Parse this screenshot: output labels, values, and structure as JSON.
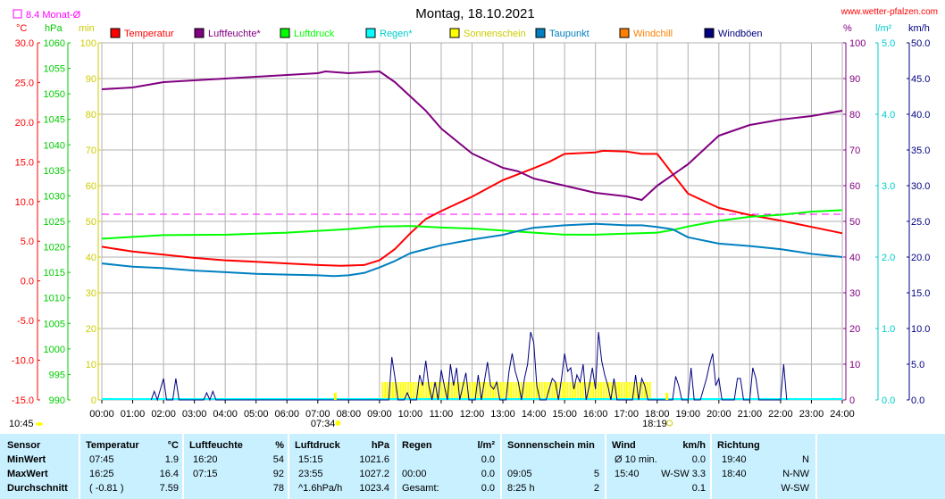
{
  "chart_data": {
    "type": "line",
    "title": "Montag, 18.10.2021",
    "website": "www.wetter-pfalzen.com",
    "monthly_avg_label": "8.4 Monat-Ø",
    "monthly_avg_value": 8.4,
    "axes": {
      "temp": {
        "unit": "°C",
        "min": -15,
        "max": 30,
        "ticks": [
          "30.0",
          "25.0",
          "20.0",
          "15.0",
          "10.0",
          "5.0",
          "0.0",
          "-5.0",
          "-10.0",
          "-15.0"
        ],
        "color": "#ff0000"
      },
      "pressure": {
        "unit": "hPa",
        "min": 990,
        "max": 1060,
        "ticks": [
          "1060",
          "1055",
          "1050",
          "1045",
          "1040",
          "1035",
          "1030",
          "1025",
          "1020",
          "1015",
          "1010",
          "1005",
          "1000",
          "995",
          "990"
        ],
        "color": "#00cc00"
      },
      "sun_min": {
        "unit": "min",
        "min": 0,
        "max": 100,
        "ticks": [
          "100",
          "90",
          "80",
          "70",
          "60",
          "50",
          "40",
          "30",
          "20",
          "10",
          "0"
        ],
        "color": "#cccc00"
      },
      "humidity": {
        "unit": "%",
        "min": 0,
        "max": 100,
        "ticks": [
          "100",
          "90",
          "80",
          "70",
          "60",
          "50",
          "40",
          "30",
          "20",
          "10",
          "0"
        ],
        "color": "#800080"
      },
      "rain": {
        "unit": "l/m²",
        "min": 0,
        "max": 5,
        "ticks": [
          "5.0",
          "4.0",
          "3.0",
          "2.0",
          "1.0",
          "0.0"
        ],
        "color": "#00cccc"
      },
      "wind": {
        "unit": "km/h",
        "min": 0,
        "max": 50,
        "ticks": [
          "50.0",
          "45.0",
          "40.0",
          "35.0",
          "30.0",
          "25.0",
          "20.0",
          "15.0",
          "10.0",
          "5.0",
          "0.0"
        ],
        "color": "#000080"
      }
    },
    "x_ticks": [
      "00:00",
      "01:00",
      "02:00",
      "03:00",
      "04:00",
      "05:00",
      "06:00",
      "07:00",
      "08:00",
      "09:00",
      "10:00",
      "11:00",
      "12:00",
      "13:00",
      "14:00",
      "15:00",
      "16:00",
      "17:00",
      "18:00",
      "19:00",
      "20:00",
      "21:00",
      "22:00",
      "23:00",
      "24:00"
    ],
    "legend": [
      {
        "label": "Temperatur",
        "color": "#ff0000"
      },
      {
        "label": "Luftfeuchte*",
        "color": "#800080"
      },
      {
        "label": "Luftdruck",
        "color": "#00ff00"
      },
      {
        "label": "Regen*",
        "color": "#00ffff"
      },
      {
        "label": "Sonnenschein",
        "color": "#ffff00"
      },
      {
        "label": "Taupunkt",
        "color": "#0080c0"
      },
      {
        "label": "Windchill",
        "color": "#ff8000"
      },
      {
        "label": "Windböen",
        "color": "#000080"
      }
    ],
    "sunrise": "07:34",
    "sunset": "18:19",
    "current_time": "10:45",
    "series": [
      {
        "name": "Temperatur",
        "axis": "temp",
        "color": "#ff0000",
        "x": [
          0,
          1,
          2,
          3,
          4,
          5,
          6,
          7,
          7.75,
          8.5,
          9,
          9.5,
          10,
          10.5,
          11,
          12,
          13,
          14,
          14.5,
          15,
          16,
          16.25,
          17,
          17.5,
          18,
          18.5,
          19,
          20,
          21,
          22,
          23,
          24
        ],
        "y": [
          4.3,
          3.7,
          3.3,
          2.9,
          2.6,
          2.4,
          2.2,
          2.0,
          1.9,
          2.0,
          2.6,
          4.0,
          6.0,
          7.8,
          8.8,
          10.6,
          12.7,
          14.2,
          15.0,
          16.0,
          16.2,
          16.4,
          16.3,
          16.0,
          16.0,
          13.5,
          11.0,
          9.2,
          8.3,
          7.6,
          6.8,
          6.0
        ]
      },
      {
        "name": "Luftfeuchte*",
        "axis": "humidity",
        "color": "#800080",
        "x": [
          0,
          1,
          2,
          3,
          4,
          5,
          6,
          7,
          7.25,
          8,
          9,
          9.5,
          10,
          10.5,
          11,
          12,
          13,
          13.5,
          14,
          15,
          16,
          17,
          17.5,
          18,
          19,
          20,
          21,
          22,
          23,
          24
        ],
        "y": [
          87,
          87.5,
          89,
          89.5,
          90,
          90.5,
          91,
          91.5,
          92,
          91.5,
          92,
          89,
          85,
          81,
          76,
          69,
          65,
          64,
          62,
          60,
          58,
          57,
          56,
          60,
          66,
          74,
          77,
          78.5,
          79.5,
          81
        ]
      },
      {
        "name": "Luftdruck",
        "axis": "pressure",
        "color": "#00ff00",
        "x": [
          0,
          2,
          4,
          6,
          8,
          9,
          10,
          11,
          12,
          13,
          14,
          15,
          16,
          17,
          18,
          18.5,
          19,
          20,
          21,
          22,
          23,
          24
        ],
        "y": [
          1021.6,
          1022.3,
          1022.4,
          1022.8,
          1023.5,
          1024.0,
          1024.1,
          1023.8,
          1023.6,
          1023.2,
          1022.8,
          1022.4,
          1022.4,
          1022.6,
          1022.8,
          1023.3,
          1024.0,
          1025.1,
          1025.9,
          1026.3,
          1026.9,
          1027.2
        ]
      },
      {
        "name": "Taupunkt",
        "axis": "temp",
        "color": "#0080c0",
        "x": [
          0,
          1,
          2,
          3,
          4,
          5,
          6,
          7,
          7.5,
          8,
          8.5,
          9,
          9.5,
          10,
          10.5,
          11,
          12,
          13,
          13.5,
          14,
          15,
          16,
          17,
          17.5,
          18,
          18.5,
          19,
          20,
          21,
          22,
          23,
          24
        ],
        "y": [
          2.2,
          1.8,
          1.6,
          1.3,
          1.1,
          0.9,
          0.8,
          0.7,
          0.6,
          0.7,
          1.0,
          1.7,
          2.5,
          3.5,
          4.0,
          4.5,
          5.2,
          5.8,
          6.3,
          6.7,
          7.0,
          7.2,
          7.0,
          7.0,
          6.8,
          6.5,
          5.5,
          4.7,
          4.4,
          4.0,
          3.4,
          3.0
        ]
      }
    ],
    "gusts": {
      "name": "Windböen",
      "axis": "wind",
      "color": "#000080",
      "points": [
        [
          1.6,
          0
        ],
        [
          1.7,
          1.2
        ],
        [
          1.8,
          0
        ],
        [
          1.9,
          1.5
        ],
        [
          2.0,
          3.0
        ],
        [
          2.1,
          0
        ],
        [
          2.3,
          0
        ],
        [
          2.4,
          3.0
        ],
        [
          2.5,
          0
        ],
        [
          3.3,
          0
        ],
        [
          3.4,
          1.0
        ],
        [
          3.5,
          0
        ],
        [
          3.6,
          1.2
        ],
        [
          3.7,
          0
        ],
        [
          9.3,
          0
        ],
        [
          9.4,
          6.0
        ],
        [
          9.5,
          3.2
        ],
        [
          9.6,
          0
        ],
        [
          9.8,
          0
        ],
        [
          9.9,
          1.0
        ],
        [
          10.0,
          0
        ],
        [
          10.2,
          0
        ],
        [
          10.3,
          3.5
        ],
        [
          10.4,
          2.0
        ],
        [
          10.5,
          5.5
        ],
        [
          10.6,
          2.0
        ],
        [
          10.7,
          0
        ],
        [
          10.8,
          2.5
        ],
        [
          10.9,
          0
        ],
        [
          11.0,
          4.2
        ],
        [
          11.1,
          2.0
        ],
        [
          11.2,
          0
        ],
        [
          11.3,
          5.0
        ],
        [
          11.4,
          2.0
        ],
        [
          11.5,
          4.5
        ],
        [
          11.6,
          0
        ],
        [
          11.8,
          3.8
        ],
        [
          11.9,
          0
        ],
        [
          12.1,
          0
        ],
        [
          12.2,
          3.5
        ],
        [
          12.3,
          0
        ],
        [
          12.5,
          5.3
        ],
        [
          12.6,
          2.0
        ],
        [
          12.7,
          1.5
        ],
        [
          12.8,
          2.5
        ],
        [
          12.9,
          0
        ],
        [
          13.1,
          0
        ],
        [
          13.2,
          4.0
        ],
        [
          13.3,
          6.5
        ],
        [
          13.4,
          4.0
        ],
        [
          13.5,
          2.5
        ],
        [
          13.6,
          0
        ],
        [
          13.7,
          3.0
        ],
        [
          13.8,
          5.0
        ],
        [
          13.9,
          9.5
        ],
        [
          14.0,
          8.0
        ],
        [
          14.1,
          2.0
        ],
        [
          14.2,
          0
        ],
        [
          14.4,
          0
        ],
        [
          14.6,
          3.0
        ],
        [
          14.7,
          2.5
        ],
        [
          14.8,
          0
        ],
        [
          14.9,
          3.0
        ],
        [
          15.0,
          6.5
        ],
        [
          15.1,
          4.0
        ],
        [
          15.2,
          4.5
        ],
        [
          15.3,
          1.5
        ],
        [
          15.4,
          3.5
        ],
        [
          15.5,
          2.5
        ],
        [
          15.6,
          5.0
        ],
        [
          15.7,
          0
        ],
        [
          15.8,
          2.0
        ],
        [
          15.9,
          4.5
        ],
        [
          16.0,
          1.5
        ],
        [
          16.1,
          9.5
        ],
        [
          16.2,
          5.5
        ],
        [
          16.3,
          3.5
        ],
        [
          16.4,
          2.0
        ],
        [
          16.5,
          0
        ],
        [
          16.6,
          3.0
        ],
        [
          16.7,
          0
        ],
        [
          17.2,
          0
        ],
        [
          17.3,
          3.5
        ],
        [
          17.4,
          0
        ],
        [
          17.5,
          3.0
        ],
        [
          17.6,
          2.0
        ],
        [
          17.7,
          0
        ],
        [
          18.5,
          0
        ],
        [
          18.6,
          3.3
        ],
        [
          18.7,
          2.0
        ],
        [
          18.8,
          0
        ],
        [
          19.0,
          0
        ],
        [
          19.1,
          4.5
        ],
        [
          19.2,
          0
        ],
        [
          19.4,
          0
        ],
        [
          19.6,
          3.0
        ],
        [
          19.7,
          5.0
        ],
        [
          19.8,
          6.5
        ],
        [
          19.9,
          2.0
        ],
        [
          20.0,
          3.0
        ],
        [
          20.1,
          0
        ],
        [
          20.5,
          0
        ],
        [
          20.6,
          3.0
        ],
        [
          20.7,
          3.0
        ],
        [
          20.8,
          0
        ],
        [
          21.0,
          0
        ],
        [
          21.1,
          4.5
        ],
        [
          21.2,
          3.0
        ],
        [
          21.3,
          0
        ],
        [
          22.0,
          0
        ],
        [
          22.1,
          5.0
        ],
        [
          22.2,
          0
        ]
      ]
    },
    "sunshine": {
      "name": "Sonnenschein",
      "axis": "sun_min",
      "color": "#ffff00",
      "start": 9.1,
      "end": 17.8,
      "value": 5
    }
  },
  "table": {
    "header": [
      "Sensor",
      "Temperatur",
      "°C",
      "Luftfeuchte",
      "%",
      "Luftdruck",
      "hPa",
      "Regen",
      "l/m²",
      "Sonnenschein min",
      "Wind",
      "km/h",
      "Richtung"
    ],
    "rows": [
      {
        "label": "MinWert",
        "temp_time": "07:45",
        "temp": "1.9",
        "hum_time": "16:20",
        "hum": "54",
        "press_time": "15:15",
        "press": "1021.6",
        "rain_time": "",
        "rain": "0.0",
        "sun_time": "",
        "sun": "",
        "wind_time": "Ø 10 min.",
        "wind": "0.0",
        "dir_time": "19:40",
        "dir": "N"
      },
      {
        "label": "MaxWert",
        "temp_time": "16:25",
        "temp": "16.4",
        "hum_time": "07:15",
        "hum": "92",
        "press_time": "23:55",
        "press": "1027.2",
        "rain_time": "00:00",
        "rain": "0.0",
        "sun_time": "09:05",
        "sun": "5",
        "wind_time": "15:40",
        "wind": "W-SW 3.3",
        "dir_time": "18:40",
        "dir": "N-NW"
      },
      {
        "label": "Durchschnitt",
        "temp_time": "( -0.81 )",
        "temp": "7.59",
        "hum_time": "",
        "hum": "78",
        "press_time": "^1.6hPa/h",
        "press": "1023.4",
        "rain_time": "Gesamt:",
        "rain": "0.0",
        "sun_time": "8:25 h",
        "sun": "2",
        "wind_time": "",
        "wind": "0.1",
        "dir_time": "",
        "dir": "W-SW"
      }
    ]
  }
}
